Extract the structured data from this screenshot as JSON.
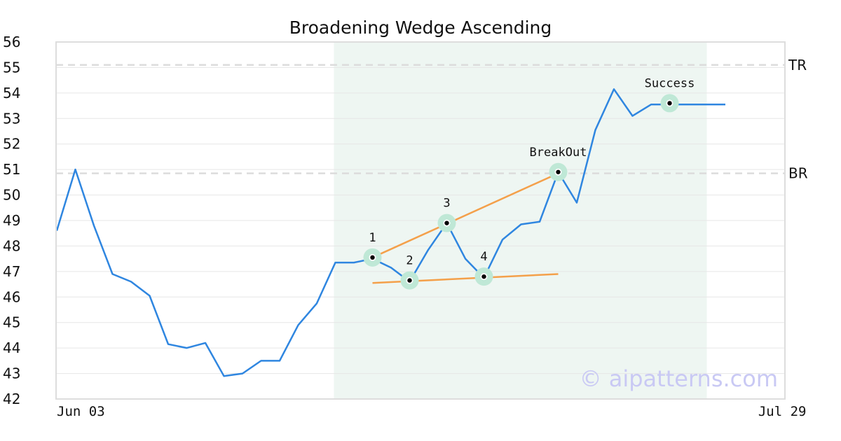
{
  "chart_data": {
    "type": "line",
    "title": "Broadening Wedge Ascending",
    "xlabel": "",
    "ylabel": "",
    "ylim": [
      42,
      56
    ],
    "yticks": [
      42,
      43,
      44,
      45,
      46,
      47,
      48,
      49,
      50,
      51,
      52,
      53,
      54,
      55,
      56
    ],
    "x_tick_labels": [
      {
        "index": 0,
        "label": "Jun 03"
      },
      {
        "index": 39,
        "label": "Jul 29"
      }
    ],
    "grid": true,
    "series": [
      {
        "color": "#2f86e0",
        "values": [
          48.6,
          51.0,
          48.8,
          46.9,
          46.6,
          46.05,
          44.15,
          44.0,
          44.2,
          42.9,
          43.0,
          43.5,
          43.5,
          44.9,
          45.75,
          47.35,
          47.35,
          47.5,
          47.15,
          46.6,
          47.85,
          48.9,
          47.5,
          46.75,
          48.25,
          48.85,
          48.95,
          50.9,
          49.7,
          52.55,
          54.15,
          53.1,
          53.55,
          53.55,
          53.55,
          53.55,
          53.55
        ]
      }
    ],
    "highlight_region": {
      "start_index": 15,
      "end_index": 35,
      "color": "#eef6f2"
    },
    "reference_lines": [
      {
        "label": "TR",
        "value": 55.1
      },
      {
        "label": "BR",
        "value": 50.85
      }
    ],
    "trendlines": [
      {
        "color": "#f4a04a",
        "from": {
          "x": 17,
          "y": 47.55
        },
        "to": {
          "x": 27,
          "y": 50.85
        }
      },
      {
        "color": "#f4a04a",
        "from": {
          "x": 17,
          "y": 46.55
        },
        "to": {
          "x": 27,
          "y": 46.9
        }
      }
    ],
    "annotations": [
      {
        "label": "1",
        "x": 17,
        "y": 47.55
      },
      {
        "label": "2",
        "x": 19,
        "y": 46.65
      },
      {
        "label": "3",
        "x": 21,
        "y": 48.9
      },
      {
        "label": "4",
        "x": 23,
        "y": 46.8
      },
      {
        "label": "BreakOut",
        "x": 27,
        "y": 50.9
      },
      {
        "label": "Success",
        "x": 33,
        "y": 53.6
      }
    ],
    "watermark": "© aipatterns.com"
  }
}
